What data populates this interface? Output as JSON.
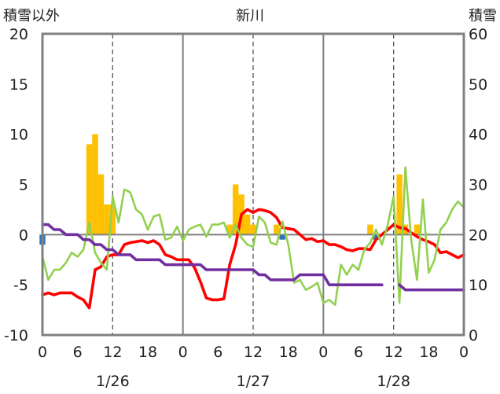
{
  "chart_data": {
    "type": "bar+line",
    "title": "新川",
    "left_axis_label": "積雪以外",
    "right_axis_label": "積雪",
    "left_ylim": [
      -10,
      20
    ],
    "left_ticks": [
      20,
      15,
      10,
      5,
      0,
      -5,
      -10
    ],
    "right_ylim": [
      0,
      60
    ],
    "right_ticks": [
      60,
      50,
      40,
      30,
      20,
      10,
      0
    ],
    "x_range_hours": [
      0,
      72
    ],
    "x_tick_hours": [
      0,
      6,
      12,
      18,
      24,
      30,
      36,
      42,
      48,
      54,
      60,
      66,
      72
    ],
    "x_tick_labels": [
      "0",
      "6",
      "12",
      "18",
      "0",
      "6",
      "12",
      "18",
      "0",
      "6",
      "12",
      "18",
      "0"
    ],
    "day_labels": [
      {
        "label": "1/26",
        "hour": 12
      },
      {
        "label": "1/27",
        "hour": 36
      },
      {
        "label": "1/28",
        "hour": 60
      }
    ],
    "colors": {
      "snowfall_bar": "#FFC000",
      "precip_bar": "#2E75B6",
      "temperature": "#FF0000",
      "green_series": "#92D050",
      "snow_depth": "#7030A0",
      "grid_dashed": "#555555",
      "frame": "#808080"
    },
    "bars_yellow": {
      "hours": [
        8,
        9,
        10,
        11,
        12,
        32,
        33,
        34,
        35,
        36,
        40,
        56,
        61,
        62,
        64
      ],
      "values": [
        9,
        10,
        6,
        3,
        3,
        1,
        5,
        4,
        2,
        1,
        1,
        1,
        6,
        1,
        1
      ]
    },
    "bars_blue": {
      "hours": [
        0,
        41,
        57
      ],
      "values": [
        -1,
        -0.5,
        -0.5
      ]
    },
    "series": [
      {
        "name": "",
        "color": "#FF0000",
        "axis": "left",
        "x": [
          0,
          1,
          2,
          3,
          4,
          5,
          6,
          7,
          8,
          9,
          10,
          11,
          12,
          13,
          14,
          15,
          16,
          17,
          18,
          19,
          20,
          21,
          22,
          23,
          24,
          25,
          26,
          27,
          28,
          29,
          30,
          31,
          32,
          33,
          34,
          35,
          36,
          37,
          38,
          39,
          40,
          41,
          42,
          43,
          44,
          45,
          46,
          47,
          48,
          49,
          50,
          51,
          52,
          53,
          54,
          55,
          56,
          57,
          58,
          59,
          60,
          61,
          62,
          63,
          64,
          65,
          66,
          67,
          68,
          69,
          70,
          71,
          72
        ],
        "y": [
          -6,
          -5.8,
          -6,
          -5.8,
          -5.8,
          -5.8,
          -6.2,
          -6.5,
          -7.3,
          -3.5,
          -3.2,
          -2.2,
          -2,
          -2,
          -1,
          -0.8,
          -0.7,
          -0.6,
          -0.8,
          -0.6,
          -1,
          -2,
          -2.2,
          -2.5,
          -2.5,
          -2.5,
          -3.3,
          -4.7,
          -6.3,
          -6.5,
          -6.5,
          -6.4,
          -3,
          -1,
          2,
          2.5,
          2.2,
          2.5,
          2.4,
          2.2,
          1.7,
          0.7,
          0.6,
          0.5,
          0,
          -0.5,
          -0.4,
          -0.7,
          -0.6,
          -1,
          -1,
          -1.2,
          -1.5,
          -1.6,
          -1.4,
          -1.4,
          -1.5,
          -0.5,
          0,
          0.5,
          1,
          0.7,
          0.6,
          0.2,
          -0.2,
          -0.5,
          -0.7,
          -1,
          -1.8,
          -1.7,
          -2,
          -2.3,
          -2
        ]
      },
      {
        "name": "",
        "color": "#92D050",
        "axis": "left",
        "x": [
          0,
          1,
          2,
          3,
          4,
          5,
          6,
          7,
          8,
          9,
          10,
          11,
          12,
          13,
          14,
          15,
          16,
          17,
          18,
          19,
          20,
          21,
          22,
          23,
          24,
          25,
          26,
          27,
          28,
          29,
          30,
          31,
          32,
          33,
          34,
          35,
          36,
          37,
          38,
          39,
          40,
          41,
          42,
          43,
          44,
          45,
          46,
          47,
          48,
          49,
          50,
          51,
          52,
          53,
          54,
          55,
          56,
          57,
          58,
          59,
          60,
          61,
          62,
          63,
          64,
          65,
          66,
          67,
          68,
          69,
          70,
          71,
          72
        ],
        "y": [
          -2.2,
          -4.5,
          -3.5,
          -3.5,
          -2.8,
          -1.8,
          -2.2,
          -1.5,
          1.2,
          -1.8,
          -2.8,
          -3.5,
          3.8,
          1.2,
          4.5,
          4.2,
          2.5,
          2,
          0.5,
          1.8,
          2,
          -0.5,
          -0.3,
          0.8,
          -0.6,
          0.5,
          0.8,
          1,
          -0.2,
          1,
          1,
          1.2,
          -0.3,
          1,
          -0.3,
          -1,
          -1.2,
          1.8,
          1.2,
          -0.8,
          -1,
          1.3,
          -1,
          -4.8,
          -4.5,
          -5.5,
          -5.2,
          -4.8,
          -6.8,
          -6.5,
          -7,
          -3,
          -4,
          -3,
          -3.5,
          -1.5,
          -0.8,
          0.5,
          -1,
          1,
          3.8,
          -6.8,
          6.7,
          -0.5,
          -4.5,
          3.5,
          -3.8,
          -2.5,
          0.5,
          1.2,
          2.5,
          3.3,
          2.7
        ]
      },
      {
        "name": "",
        "color": "#7030A0",
        "axis": "right",
        "x": [
          0,
          1,
          2,
          3,
          4,
          5,
          6,
          7,
          8,
          9,
          10,
          11,
          12,
          13,
          14,
          15,
          16,
          17,
          18,
          19,
          20,
          21,
          22,
          23,
          24,
          25,
          26,
          27,
          28,
          29,
          30,
          31,
          32,
          33,
          34,
          35,
          36,
          37,
          38,
          39,
          40,
          41,
          42,
          43,
          44,
          45,
          46,
          47,
          48,
          49,
          50,
          51,
          52,
          53,
          54,
          55,
          56,
          57,
          58
        ],
        "y": [
          22,
          22,
          21,
          21,
          20,
          20,
          20,
          19,
          19,
          18,
          18,
          17,
          17,
          16,
          16,
          16,
          15,
          15,
          15,
          15,
          15,
          14,
          14,
          14,
          14,
          14,
          14,
          14,
          13,
          13,
          13,
          13,
          13,
          13,
          13,
          13,
          13,
          12,
          12,
          11,
          11,
          11,
          11,
          11,
          12,
          12,
          12,
          12,
          12,
          10,
          10,
          10,
          10,
          10,
          10,
          10,
          10,
          10,
          10
        ]
      },
      {
        "name": "",
        "color": "#7030A0",
        "axis": "right",
        "x": [
          61,
          62,
          63,
          64,
          65,
          66,
          67,
          68,
          69,
          70,
          71,
          72
        ],
        "y": [
          10,
          9,
          9,
          9,
          9,
          9,
          9,
          9,
          9,
          9,
          9,
          9
        ]
      }
    ]
  }
}
